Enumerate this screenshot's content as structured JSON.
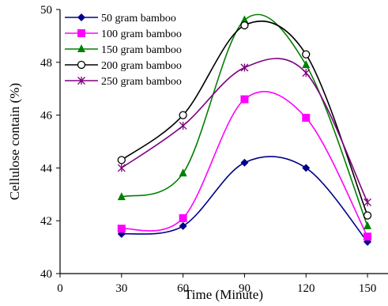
{
  "chart_data": {
    "type": "line",
    "title": "",
    "xlabel": "Time (Minute)",
    "ylabel": "Cellulose contain (%)",
    "xlim": [
      0,
      160
    ],
    "ylim": [
      40,
      50
    ],
    "xticks": [
      "0",
      "30",
      "60",
      "90",
      "120",
      "150"
    ],
    "yticks": [
      "40",
      "42",
      "44",
      "46",
      "48",
      "50"
    ],
    "grid": false,
    "legend_position": "top-left",
    "x": [
      30,
      60,
      90,
      120,
      150
    ],
    "series": [
      {
        "name": "50 gram bamboo",
        "color": "#00008B",
        "marker": "diamond",
        "values": [
          41.5,
          41.8,
          44.2,
          44.0,
          41.2
        ]
      },
      {
        "name": "100 gram bamboo",
        "color": "#FF00FF",
        "marker": "square",
        "values": [
          41.7,
          42.1,
          46.6,
          45.9,
          41.4
        ]
      },
      {
        "name": "150 gram bamboo",
        "color": "#008000",
        "marker": "triangle",
        "values": [
          42.9,
          43.8,
          49.6,
          47.9,
          41.8
        ]
      },
      {
        "name": "200 gram bamboo",
        "color": "#000000",
        "marker": "circle",
        "values": [
          44.3,
          46.0,
          49.4,
          48.3,
          42.2
        ]
      },
      {
        "name": "250 gram bamboo",
        "color": "#800080",
        "marker": "asterisk",
        "values": [
          44.0,
          45.6,
          47.8,
          47.6,
          42.7
        ]
      }
    ]
  }
}
